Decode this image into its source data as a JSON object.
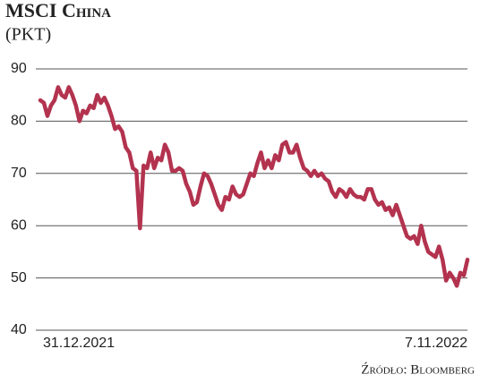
{
  "chart_data": {
    "type": "line",
    "title": "MSCI China",
    "subtitle": "(PKT)",
    "source": "Źródło: Bloomberg",
    "ylim": [
      40,
      90
    ],
    "yticks": [
      40,
      50,
      60,
      70,
      80,
      90
    ],
    "grid": true,
    "categories": [
      "31.12.2021",
      null,
      null,
      null,
      null,
      null,
      null,
      null,
      null,
      null,
      null,
      null,
      null,
      null,
      null,
      null,
      null,
      null,
      null,
      null,
      null,
      null,
      null,
      null,
      null,
      null,
      null,
      null,
      null,
      null,
      null,
      null,
      null,
      null,
      null,
      null,
      null,
      null,
      null,
      null,
      null,
      null,
      null,
      null,
      null,
      null,
      null,
      null,
      null,
      null,
      null,
      null,
      null,
      null,
      null,
      null,
      null,
      null,
      null,
      null,
      null,
      null,
      null,
      null,
      null,
      null,
      null,
      null,
      null,
      null,
      null,
      null,
      null,
      null,
      null,
      null,
      null,
      null,
      null,
      null,
      null,
      null,
      null,
      null,
      null,
      null,
      null,
      null,
      null,
      null,
      null,
      null,
      null,
      null,
      null,
      null,
      null,
      null,
      null,
      null,
      null,
      null,
      null,
      null,
      null,
      null,
      null,
      null,
      null,
      null,
      null,
      null,
      null,
      null,
      null,
      null,
      null,
      null,
      null,
      null,
      "7.11.2022"
    ],
    "series": [
      {
        "name": "MSCI China",
        "color": "#b3334f",
        "values": [
          84,
          83.5,
          81,
          83,
          84,
          86.5,
          85,
          84.5,
          86.5,
          85,
          83,
          80,
          82,
          81.5,
          83,
          82.5,
          85,
          83.5,
          84.5,
          83,
          81,
          78.5,
          79,
          78,
          75,
          74,
          71,
          70.5,
          59.5,
          71.5,
          71,
          74,
          71,
          73,
          72.5,
          75.5,
          74,
          70.5,
          70.5,
          71,
          70.5,
          68,
          66.5,
          64,
          64.5,
          67.5,
          70,
          69.5,
          68,
          66,
          64,
          63,
          65.5,
          65,
          67.5,
          66,
          65.5,
          66,
          68,
          70,
          69.5,
          72,
          74,
          71,
          72.5,
          71,
          73.5,
          72.5,
          75.5,
          76,
          74,
          74,
          75.5,
          73,
          71,
          70.5,
          69.5,
          70.5,
          69.5,
          70,
          69,
          68.5,
          66.5,
          65.5,
          67,
          66.5,
          65.5,
          67,
          66,
          65.5,
          65.5,
          65,
          67,
          67,
          65,
          64,
          64.5,
          63,
          63.5,
          62,
          64,
          62,
          60,
          58,
          57.5,
          58,
          56.5,
          60,
          57,
          55,
          54.5,
          54,
          56,
          53.5,
          49.5,
          51,
          50,
          48.5,
          51,
          50.5,
          53.5
        ]
      }
    ]
  }
}
